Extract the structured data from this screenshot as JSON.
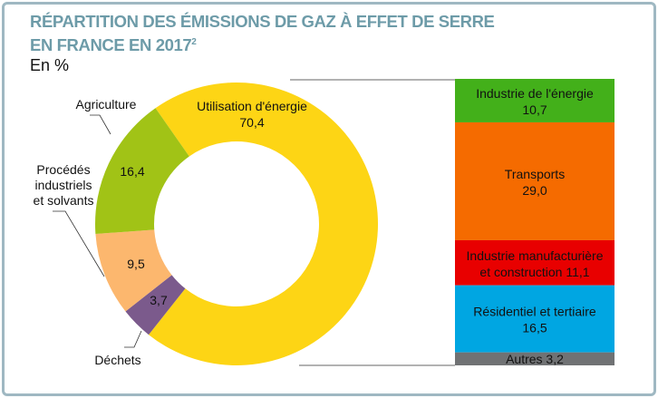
{
  "chart_data": {
    "type": "pie",
    "title_line1": "RÉPARTITION DES ÉMISSIONS DE GAZ À EFFET DE SERRE",
    "title_line2": "EN FRANCE EN 2017",
    "title_sup": "2",
    "unit": "En %",
    "donut": [
      {
        "name": "Utilisation d'énergie",
        "label_line1": "Utilisation d'énergie",
        "value": 70.4,
        "value_label": "70,4",
        "color": "#fdd515"
      },
      {
        "name": "Déchets",
        "label_line1": "Déchets",
        "value": 3.7,
        "value_label": "3,7",
        "color": "#7b5a8c"
      },
      {
        "name": "Procédés industriels et solvants",
        "label_line1": "Procédés",
        "label_line2": "industriels",
        "label_line3": "et solvants",
        "value": 9.5,
        "value_label": "9,5",
        "color": "#fcb76e"
      },
      {
        "name": "Agriculture",
        "label_line1": "Agriculture",
        "value": 16.4,
        "value_label": "16,4",
        "color": "#a1c316"
      }
    ],
    "breakdown": [
      {
        "label_line1": "Industrie de l'énergie",
        "label_line2": "10,7",
        "value": 10.7,
        "color": "#43b01a"
      },
      {
        "label_line1": "Transports",
        "label_line2": "29,0",
        "value": 29.0,
        "color": "#f56b00"
      },
      {
        "label_line1": "Industrie manufacturière",
        "label_line2": "et construction 11,1",
        "value": 11.1,
        "color": "#e80000"
      },
      {
        "label_line1": "Résidentiel et tertiaire",
        "label_line2": "16,5",
        "value": 16.5,
        "color": "#00a6e2"
      },
      {
        "label_line1": "Autres 3,2",
        "label_line2": "",
        "value": 3.2,
        "color": "#707274"
      }
    ]
  }
}
